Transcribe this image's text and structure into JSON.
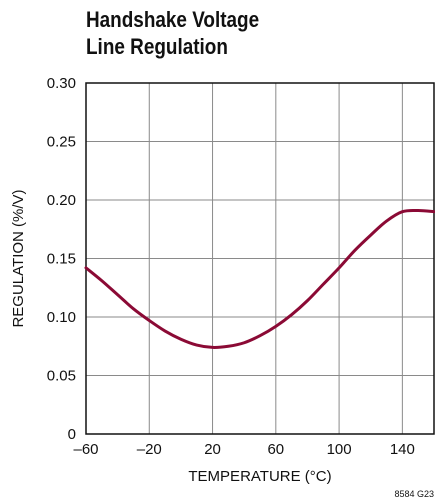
{
  "chart_data": {
    "type": "line",
    "title_lines": [
      "Handshake Voltage",
      "Line Regulation"
    ],
    "xlabel": "TEMPERATURE (°C)",
    "ylabel": "REGULATION (%/V)",
    "xlim": [
      -60,
      160
    ],
    "ylim": [
      0,
      0.3
    ],
    "x_ticks": [
      -60,
      -20,
      20,
      60,
      100,
      140
    ],
    "x_tick_labels": [
      "–60",
      "–20",
      "20",
      "60",
      "100",
      "140"
    ],
    "y_ticks": [
      0,
      0.05,
      0.1,
      0.15,
      0.2,
      0.25,
      0.3
    ],
    "y_tick_labels": [
      "0",
      "0.05",
      "0.10",
      "0.15",
      "0.20",
      "0.25",
      "0.30"
    ],
    "grid": true,
    "line_color": "#8b0a35",
    "figure_id": "8584 G23",
    "series": [
      {
        "x": [
          -60,
          -50,
          -40,
          -30,
          -20,
          -10,
          0,
          10,
          20,
          30,
          40,
          50,
          60,
          70,
          80,
          90,
          100,
          110,
          120,
          130,
          140,
          150,
          160
        ],
        "y": [
          0.142,
          0.131,
          0.119,
          0.107,
          0.097,
          0.088,
          0.081,
          0.076,
          0.074,
          0.075,
          0.078,
          0.084,
          0.092,
          0.102,
          0.114,
          0.128,
          0.142,
          0.157,
          0.17,
          0.182,
          0.19,
          0.191,
          0.19
        ]
      }
    ]
  }
}
